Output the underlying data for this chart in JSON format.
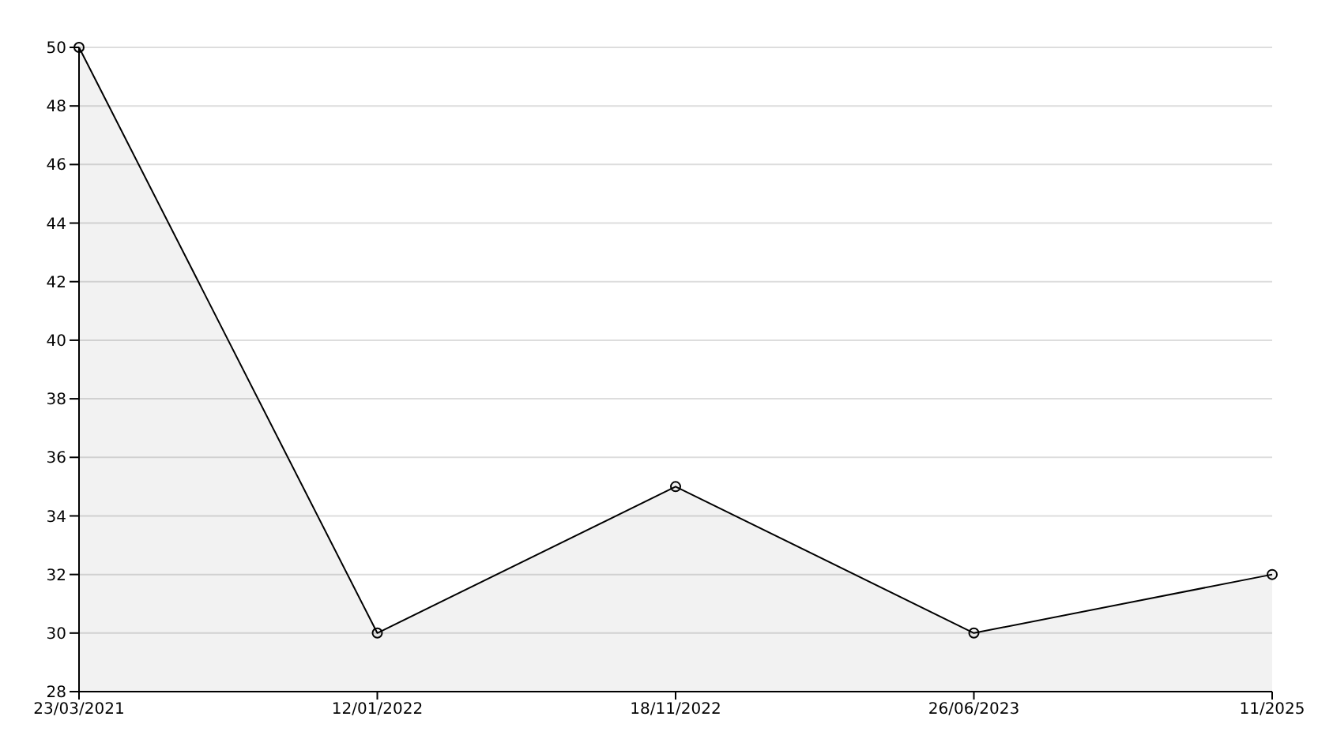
{
  "chart_data": {
    "type": "area",
    "categories": [
      "23/03/2021",
      "12/01/2022",
      "18/11/2022",
      "26/06/2023",
      "11/2025"
    ],
    "series": [
      {
        "color": "#000000",
        "values": [
          50,
          30,
          35,
          30,
          32
        ]
      }
    ],
    "ylim": [
      28,
      50
    ],
    "yticks": [
      28,
      30,
      32,
      34,
      36,
      38,
      40,
      42,
      44,
      46,
      48,
      50
    ],
    "grid": "y",
    "marker": "circle",
    "legend": false
  }
}
